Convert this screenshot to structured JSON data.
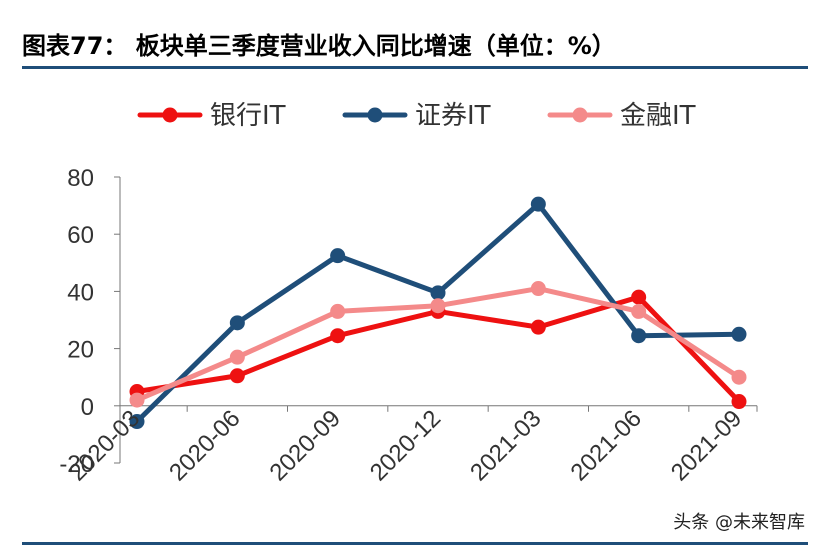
{
  "title": "图表77：  板块单三季度营业收入同比增速（单位：%）",
  "watermark": "头条 @未来智库",
  "chart_data": {
    "type": "line",
    "categories": [
      "2020-03",
      "2020-06",
      "2020-09",
      "2020-12",
      "2021-03",
      "2021-06",
      "2021-09"
    ],
    "series": [
      {
        "name": "银行IT",
        "color": "#ee1111",
        "values": [
          5,
          10.5,
          24.5,
          33,
          27.5,
          38,
          1.5
        ]
      },
      {
        "name": "证券IT",
        "color": "#1f4e79",
        "values": [
          -5.5,
          29,
          52.5,
          39.5,
          70.5,
          24.5,
          25
        ]
      },
      {
        "name": "金融IT",
        "color": "#f48a8a",
        "values": [
          2,
          17,
          33,
          35,
          41,
          33,
          10
        ]
      }
    ],
    "ylim": [
      -20,
      80
    ],
    "yticks": [
      -20,
      0,
      20,
      40,
      60,
      80
    ],
    "legend_position": "top",
    "grid": false
  }
}
